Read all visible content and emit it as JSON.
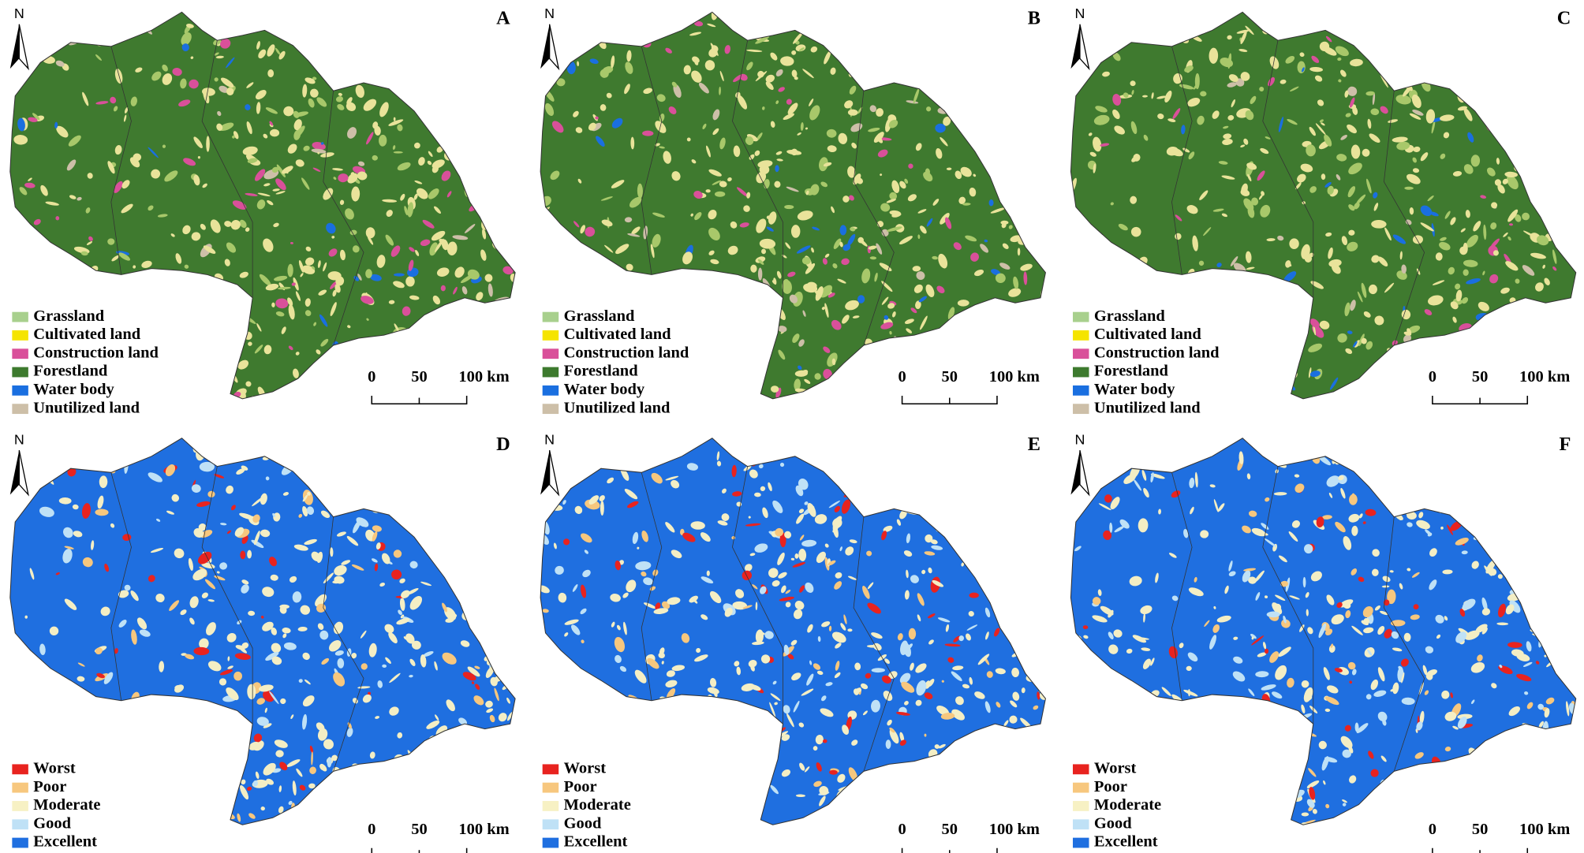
{
  "panels": [
    {
      "label": "A",
      "north": "N",
      "legend": [
        {
          "label": "Grassland",
          "color": "#a8d08d"
        },
        {
          "label": "Cultivated land",
          "color": "#f5e400"
        },
        {
          "label": "Construction land",
          "color": "#d9509a"
        },
        {
          "label": "Forestland",
          "color": "#3d7a2e"
        },
        {
          "label": "Water body",
          "color": "#1a6fe0"
        },
        {
          "label": "Unutilized land",
          "color": "#cdbfa8"
        }
      ],
      "scale": [
        "0",
        "50",
        "100 km"
      ]
    },
    {
      "label": "B",
      "north": "N",
      "legend": [
        {
          "label": "Grassland",
          "color": "#a8d08d"
        },
        {
          "label": "Cultivated land",
          "color": "#f5e400"
        },
        {
          "label": "Construction land",
          "color": "#d9509a"
        },
        {
          "label": "Forestland",
          "color": "#3d7a2e"
        },
        {
          "label": "Water body",
          "color": "#1a6fe0"
        },
        {
          "label": "Unutilized land",
          "color": "#cdbfa8"
        }
      ],
      "scale": [
        "0",
        "50",
        "100 km"
      ]
    },
    {
      "label": "C",
      "north": "N",
      "legend": [
        {
          "label": "Grassland",
          "color": "#a8d08d"
        },
        {
          "label": "Cultivated land",
          "color": "#f5e400"
        },
        {
          "label": "Construction land",
          "color": "#d9509a"
        },
        {
          "label": "Forestland",
          "color": "#3d7a2e"
        },
        {
          "label": "Water body",
          "color": "#1a6fe0"
        },
        {
          "label": "Unutilized land",
          "color": "#cdbfa8"
        }
      ],
      "scale": [
        "0",
        "50",
        "100 km"
      ]
    },
    {
      "label": "D",
      "north": "N",
      "legend": [
        {
          "label": "Worst",
          "color": "#e8231f"
        },
        {
          "label": "Poor",
          "color": "#f7c77e"
        },
        {
          "label": "Moderate",
          "color": "#f7f1c4"
        },
        {
          "label": "Good",
          "color": "#bfe1f6"
        },
        {
          "label": "Excellent",
          "color": "#1f6fe0"
        }
      ],
      "scale": [
        "0",
        "50",
        "100 km"
      ]
    },
    {
      "label": "E",
      "north": "N",
      "legend": [
        {
          "label": "Worst",
          "color": "#e8231f"
        },
        {
          "label": "Poor",
          "color": "#f7c77e"
        },
        {
          "label": "Moderate",
          "color": "#f7f1c4"
        },
        {
          "label": "Good",
          "color": "#bfe1f6"
        },
        {
          "label": "Excellent",
          "color": "#1f6fe0"
        }
      ],
      "scale": [
        "0",
        "50",
        "100 km"
      ]
    },
    {
      "label": "F",
      "north": "N",
      "legend": [
        {
          "label": "Worst",
          "color": "#e8231f"
        },
        {
          "label": "Poor",
          "color": "#f7c77e"
        },
        {
          "label": "Moderate",
          "color": "#f7f1c4"
        },
        {
          "label": "Good",
          "color": "#bfe1f6"
        },
        {
          "label": "Excellent",
          "color": "#1f6fe0"
        }
      ],
      "scale": [
        "0",
        "50",
        "100 km"
      ]
    }
  ]
}
